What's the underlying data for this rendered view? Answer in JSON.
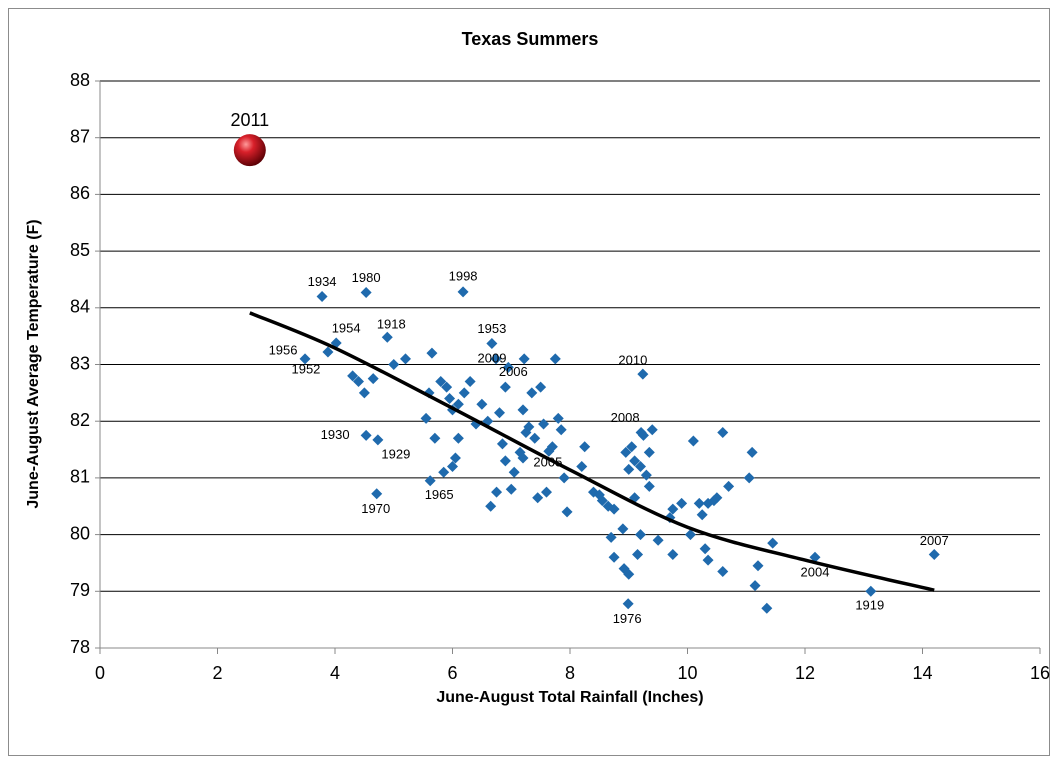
{
  "chart_data": {
    "type": "scatter",
    "title": "Texas Summers",
    "x_label": "June-August Total Rainfall (Inches)",
    "y_label": "June-August Average Temperature (F)",
    "xlim": [
      0,
      16
    ],
    "xticks": [
      0,
      2,
      4,
      6,
      8,
      10,
      12,
      14,
      16
    ],
    "ylim": [
      78,
      88
    ],
    "yticks": [
      78,
      79,
      80,
      81,
      82,
      83,
      84,
      85,
      86,
      87,
      88
    ],
    "grid": true,
    "series": [
      {
        "marker": "diamond",
        "color": "#1f6aad",
        "x": [
          3.78,
          4.53,
          6.18,
          4.89,
          4.02,
          3.49,
          3.88,
          6.67,
          6.74,
          6.95,
          9.24,
          9.21,
          7.64,
          4.53,
          4.73,
          4.71,
          5.62,
          8.99,
          12.17,
          13.12,
          14.2,
          5.0,
          5.2,
          4.3,
          4.4,
          4.65,
          4.5,
          5.65,
          5.6,
          5.55,
          5.7,
          5.8,
          5.9,
          5.95,
          6.0,
          6.1,
          6.2,
          6.3,
          6.1,
          6.0,
          6.05,
          5.85,
          6.5,
          6.4,
          6.6,
          6.8,
          6.85,
          6.9,
          6.9,
          7.05,
          7.0,
          6.75,
          6.65,
          7.22,
          7.2,
          7.35,
          7.5,
          7.25,
          7.3,
          7.4,
          7.15,
          7.2,
          7.45,
          7.6,
          7.55,
          7.7,
          7.75,
          7.8,
          7.85,
          7.9,
          7.95,
          8.2,
          8.25,
          8.4,
          8.5,
          8.55,
          8.65,
          8.75,
          8.7,
          8.75,
          8.9,
          8.92,
          9.0,
          8.95,
          9.0,
          9.05,
          9.1,
          9.1,
          9.15,
          9.2,
          9.25,
          9.3,
          9.35,
          9.4,
          9.5,
          9.2,
          9.75,
          9.7,
          9.75,
          9.9,
          10.05,
          9.35,
          10.1,
          10.2,
          10.25,
          10.3,
          10.35,
          10.45,
          10.35,
          10.6,
          10.6,
          10.7,
          11.05,
          11.1,
          11.15,
          11.2,
          11.35,
          11.45,
          10.5
        ],
        "y": [
          84.2,
          84.27,
          84.28,
          83.48,
          83.38,
          83.1,
          83.22,
          83.37,
          83.1,
          82.95,
          82.83,
          81.8,
          81.47,
          81.75,
          81.67,
          80.72,
          80.95,
          78.78,
          79.6,
          79.0,
          79.65,
          83.0,
          83.1,
          82.8,
          82.7,
          82.75,
          82.5,
          83.2,
          82.5,
          82.05,
          81.7,
          82.7,
          82.6,
          82.4,
          82.2,
          82.3,
          82.5,
          82.7,
          81.7,
          81.2,
          81.35,
          81.1,
          82.3,
          81.95,
          82.0,
          82.15,
          81.6,
          82.6,
          81.3,
          81.1,
          80.8,
          80.75,
          80.5,
          83.1,
          82.2,
          82.5,
          82.6,
          81.8,
          81.9,
          81.7,
          81.45,
          81.35,
          80.65,
          80.75,
          81.95,
          81.55,
          83.1,
          82.05,
          81.85,
          81.0,
          80.4,
          81.2,
          81.55,
          80.75,
          80.7,
          80.6,
          80.5,
          80.45,
          79.95,
          79.6,
          80.1,
          79.4,
          79.3,
          81.45,
          81.15,
          81.55,
          81.3,
          80.65,
          79.65,
          80.0,
          81.75,
          81.05,
          80.85,
          81.85,
          79.9,
          81.2,
          79.65,
          80.3,
          80.45,
          80.55,
          80.0,
          81.45,
          81.65,
          80.55,
          80.35,
          79.75,
          80.55,
          80.6,
          79.55,
          81.8,
          79.35,
          80.85,
          81.0,
          81.45,
          79.1,
          79.45,
          78.7,
          79.85,
          80.65
        ],
        "labels": [
          "1934",
          "1980",
          "1998",
          "1918",
          "1954",
          "1956",
          "1952",
          "1953",
          "2009",
          "2006",
          "2010",
          "2008",
          "2005",
          "1930",
          "1929",
          "1970",
          "1965",
          "1976",
          "2004",
          "1919",
          "2007",
          null,
          null,
          null,
          null,
          null,
          null,
          null,
          null,
          null,
          null,
          null,
          null,
          null,
          null,
          null,
          null,
          null,
          null,
          null,
          null,
          null,
          null,
          null,
          null,
          null,
          null,
          null,
          null,
          null,
          null,
          null,
          null,
          null,
          null,
          null,
          null,
          null,
          null,
          null,
          null,
          null,
          null,
          null,
          null,
          null,
          null,
          null,
          null,
          null,
          null,
          null,
          null,
          null,
          null,
          null,
          null,
          null,
          null,
          null,
          null,
          null,
          null,
          null,
          null,
          null,
          null,
          null,
          null,
          null,
          null,
          null,
          null,
          null,
          null,
          null,
          null,
          null,
          null,
          null,
          null,
          null,
          null,
          null,
          null,
          null,
          null,
          null,
          null,
          null,
          null,
          null,
          null,
          null,
          null,
          null,
          null,
          null,
          null
        ]
      },
      {
        "marker": "sphere",
        "color": "#c0141b",
        "x": [
          2.55
        ],
        "y": [
          86.78
        ],
        "labels": [
          "2011"
        ]
      }
    ],
    "trendline": {
      "color": "#000000",
      "x": [
        2.55,
        4,
        6,
        8,
        10,
        12,
        14.2
      ],
      "y": [
        83.91,
        83.29,
        82.23,
        81.14,
        80.13,
        79.55,
        79.02
      ]
    }
  }
}
